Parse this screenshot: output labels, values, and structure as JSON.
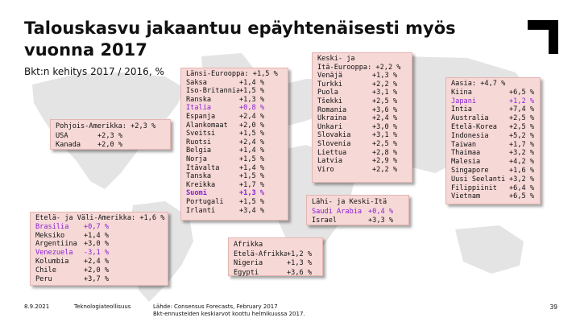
{
  "slide": {
    "title": "Talouskasvu jakaantuu epäyhtenäisesti myös vuonna 2017",
    "subtitle": "Bkt:n kehitys 2017 / 2016, %",
    "highlight_color": "#8a1fd6",
    "box_color": "#f6d8d6"
  },
  "regions": {
    "north_america": {
      "header": "Pohjois-Amerikka: +2,3 %",
      "rows": [
        {
          "country": "USA",
          "value": "+2,3 %"
        },
        {
          "country": "Kanada",
          "value": "+2,0 %"
        }
      ]
    },
    "latin_america": {
      "header": "Etelä- ja Väli-Amerikka: +1,6 %",
      "rows": [
        {
          "country": "Brasilia",
          "value": "+0,7 %",
          "highlight": true
        },
        {
          "country": "Meksiko",
          "value": "+1,4 %"
        },
        {
          "country": "Argentiina",
          "value": "+3,0 %"
        },
        {
          "country": "Venezuela",
          "value": "-3,1 %",
          "highlight": true
        },
        {
          "country": "Kolumbia",
          "value": "+2,4 %"
        },
        {
          "country": "Chile",
          "value": "+2,0 %"
        },
        {
          "country": "Peru",
          "value": "+3,7 %"
        }
      ]
    },
    "western_europe": {
      "header": "Länsi-Eurooppa: +1,5 %",
      "rows": [
        {
          "country": "Saksa",
          "value": "+1,4 %"
        },
        {
          "country": "Iso-Britannia",
          "value": "+1,5 %"
        },
        {
          "country": "Ranska",
          "value": "+1,3 %"
        },
        {
          "country": "Italia",
          "value": "+0,8 %",
          "highlight": true
        },
        {
          "country": "Espanja",
          "value": "+2,4 %"
        },
        {
          "country": "Alankomaat",
          "value": "+2,0 %"
        },
        {
          "country": "Sveitsi",
          "value": "+1,5 %"
        },
        {
          "country": "Ruotsi",
          "value": "+2,4 %"
        },
        {
          "country": "Belgia",
          "value": "+1,4 %"
        },
        {
          "country": "Norja",
          "value": "+1,5 %"
        },
        {
          "country": "Itävalta",
          "value": "+1,4 %"
        },
        {
          "country": "Tanska",
          "value": "+1,5 %"
        },
        {
          "country": "Kreikka",
          "value": "+1,7 %"
        },
        {
          "country": "Suomi",
          "value": "+1,3 %",
          "highlight": true,
          "bold": true
        },
        {
          "country": "Portugali",
          "value": "+1,5 %"
        },
        {
          "country": "Irlanti",
          "value": "+3,4 %"
        }
      ]
    },
    "eastern_europe": {
      "header_line1": "Keski- ja",
      "header_line2": "Itä-Eurooppa: +2,2 %",
      "rows": [
        {
          "country": "Venäjä",
          "value": "+1,3 %"
        },
        {
          "country": "Turkki",
          "value": "+2,2 %"
        },
        {
          "country": "Puola",
          "value": "+3,1 %"
        },
        {
          "country": "Tšekki",
          "value": "+2,5 %"
        },
        {
          "country": "Romania",
          "value": "+3,6 %"
        },
        {
          "country": "Ukraina",
          "value": "+2,4 %"
        },
        {
          "country": "Unkari",
          "value": "+3,0 %"
        },
        {
          "country": "Slovakia",
          "value": "+3,1 %"
        },
        {
          "country": "Slovenia",
          "value": "+2,5 %"
        },
        {
          "country": "Liettua",
          "value": "+2,8 %"
        },
        {
          "country": "Latvia",
          "value": "+2,9 %"
        },
        {
          "country": "Viro",
          "value": "+2,2 %"
        }
      ]
    },
    "middle_east": {
      "header": "Lähi- ja Keski-Itä",
      "rows": [
        {
          "country": "Saudi Arabia",
          "value": "+0,4 %",
          "highlight": true
        },
        {
          "country": "Israel",
          "value": "+3,3 %"
        }
      ]
    },
    "africa": {
      "header": "Afrikka",
      "rows": [
        {
          "country": "Etelä-Afrikka",
          "value": "+1,2 %"
        },
        {
          "country": "Nigeria",
          "value": "+1,3 %"
        },
        {
          "country": "Egypti",
          "value": "+3,6 %"
        }
      ]
    },
    "asia": {
      "header": "Aasia: +4,7 %",
      "rows": [
        {
          "country": "Kiina",
          "value": "+6,5 %"
        },
        {
          "country": "Japani",
          "value": "+1,2 %",
          "highlight": true
        },
        {
          "country": "Intia",
          "value": "+7,4 %"
        },
        {
          "country": "Australia",
          "value": "+2,5 %"
        },
        {
          "country": "Etelä-Korea",
          "value": "+2,5 %"
        },
        {
          "country": "Indonesia",
          "value": "+5,2 %"
        },
        {
          "country": "Taiwan",
          "value": "+1,7 %"
        },
        {
          "country": "Thaimaa",
          "value": "+3,2 %"
        },
        {
          "country": "Malesia",
          "value": "+4,2 %"
        },
        {
          "country": "Singapore",
          "value": "+1,6 %"
        },
        {
          "country": "Uusi Seelanti",
          "value": "+3,2 %"
        },
        {
          "country": "Filippiinit",
          "value": "+6,4 %"
        },
        {
          "country": "Vietnam",
          "value": "+6,5 %"
        }
      ]
    }
  },
  "footer": {
    "date": "8.9.2021",
    "organization": "Teknologiateollisuus",
    "source_line1": "Lähde: Consensus Forecasts, February 2017",
    "source_line2": "Bkt-ennusteiden keskiarvot koottu helmikuussa 2017.",
    "page_number": "39"
  }
}
